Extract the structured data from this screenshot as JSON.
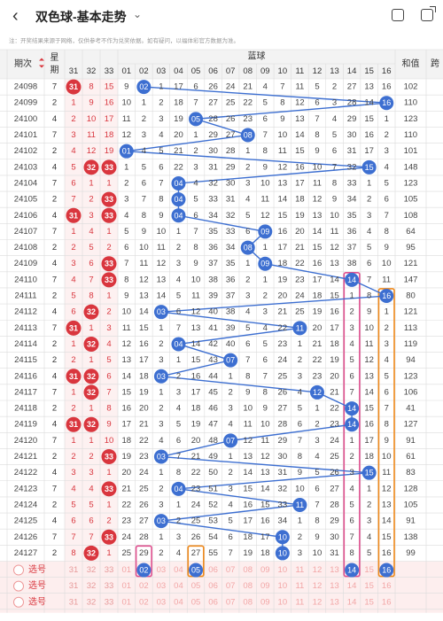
{
  "header": {
    "back_icon": "chevron-left-icon",
    "title": "双色球-基本走势",
    "dropdown_icon": "chevron-down-icon",
    "icons": [
      "phone-icon",
      "share-icon"
    ]
  },
  "notice": "注：开奖结果来源于网络，仅供参考不作为兑奖依据。如有疑问，以福体彩官方数据为准。",
  "columns": {
    "period": "期次",
    "week": "星期",
    "red_tail": [
      "31",
      "32",
      "33"
    ],
    "blue_group": "蓝球",
    "blue": [
      "01",
      "02",
      "03",
      "04",
      "05",
      "06",
      "07",
      "08",
      "09",
      "10",
      "11",
      "12",
      "13",
      "14",
      "15",
      "16"
    ],
    "sum": "和值",
    "extra": "跨"
  },
  "rows": [
    {
      "p": "24098",
      "w": "7",
      "r": [
        {
          "v": "31",
          "h": 1
        },
        {
          "v": "8"
        },
        {
          "v": "15"
        }
      ],
      "b": 2,
      "sum": "102"
    },
    {
      "p": "24099",
      "w": "2",
      "r": [
        {
          "v": "1"
        },
        {
          "v": "9"
        },
        {
          "v": "16"
        }
      ],
      "b": 16,
      "sum": "110"
    },
    {
      "p": "24100",
      "w": "4",
      "r": [
        {
          "v": "2"
        },
        {
          "v": "10"
        },
        {
          "v": "17"
        }
      ],
      "b": 5,
      "sum": "123"
    },
    {
      "p": "24101",
      "w": "7",
      "r": [
        {
          "v": "3"
        },
        {
          "v": "11"
        },
        {
          "v": "18"
        }
      ],
      "b": 8,
      "sum": "110"
    },
    {
      "p": "24102",
      "w": "2",
      "r": [
        {
          "v": "4"
        },
        {
          "v": "12"
        },
        {
          "v": "19"
        }
      ],
      "b": 1,
      "sum": "101"
    },
    {
      "p": "24103",
      "w": "4",
      "r": [
        {
          "v": "5"
        },
        {
          "v": "32",
          "h": 1
        },
        {
          "v": "33",
          "h": 1
        }
      ],
      "b": 15,
      "sum": "148"
    },
    {
      "p": "24104",
      "w": "7",
      "r": [
        {
          "v": "6"
        },
        {
          "v": "1"
        },
        {
          "v": "1"
        }
      ],
      "b": 4,
      "sum": "123"
    },
    {
      "p": "24105",
      "w": "2",
      "r": [
        {
          "v": "7"
        },
        {
          "v": "2"
        },
        {
          "v": "33",
          "h": 1
        }
      ],
      "b": 4,
      "sum": "105"
    },
    {
      "p": "24106",
      "w": "4",
      "r": [
        {
          "v": "31",
          "h": 1
        },
        {
          "v": "3"
        },
        {
          "v": "33",
          "h": 1
        }
      ],
      "b": 4,
      "sum": "108"
    },
    {
      "p": "24107",
      "w": "7",
      "r": [
        {
          "v": "1"
        },
        {
          "v": "4"
        },
        {
          "v": "1"
        }
      ],
      "b": 9,
      "sum": "64"
    },
    {
      "p": "24108",
      "w": "2",
      "r": [
        {
          "v": "2"
        },
        {
          "v": "5"
        },
        {
          "v": "2"
        }
      ],
      "b": 8,
      "sum": "95"
    },
    {
      "p": "24109",
      "w": "4",
      "r": [
        {
          "v": "3"
        },
        {
          "v": "6"
        },
        {
          "v": "33",
          "h": 1
        }
      ],
      "b": 9,
      "sum": "121"
    },
    {
      "p": "24110",
      "w": "7",
      "r": [
        {
          "v": "4"
        },
        {
          "v": "7"
        },
        {
          "v": "33",
          "h": 1
        }
      ],
      "b": 14,
      "sum": "147"
    },
    {
      "p": "24111",
      "w": "2",
      "r": [
        {
          "v": "5"
        },
        {
          "v": "8"
        },
        {
          "v": "1"
        }
      ],
      "b": 16,
      "sum": "80"
    },
    {
      "p": "24112",
      "w": "4",
      "r": [
        {
          "v": "6"
        },
        {
          "v": "32",
          "h": 1
        },
        {
          "v": "2"
        }
      ],
      "b": 3,
      "sum": "121"
    },
    {
      "p": "24113",
      "w": "7",
      "r": [
        {
          "v": "31",
          "h": 1
        },
        {
          "v": "1"
        },
        {
          "v": "3"
        }
      ],
      "b": 11,
      "sum": "113"
    },
    {
      "p": "24114",
      "w": "2",
      "r": [
        {
          "v": "1"
        },
        {
          "v": "32",
          "h": 1
        },
        {
          "v": "4"
        }
      ],
      "b": 4,
      "sum": "119"
    },
    {
      "p": "24115",
      "w": "2",
      "r": [
        {
          "v": "2"
        },
        {
          "v": "1"
        },
        {
          "v": "5"
        }
      ],
      "b": 7,
      "sum": "94"
    },
    {
      "p": "24116",
      "w": "4",
      "r": [
        {
          "v": "31",
          "h": 1
        },
        {
          "v": "32",
          "h": 1
        },
        {
          "v": "6"
        }
      ],
      "b": 3,
      "sum": "123"
    },
    {
      "p": "24117",
      "w": "7",
      "r": [
        {
          "v": "1"
        },
        {
          "v": "32",
          "h": 1
        },
        {
          "v": "7"
        }
      ],
      "b": 12,
      "sum": "106"
    },
    {
      "p": "24118",
      "w": "2",
      "r": [
        {
          "v": "2"
        },
        {
          "v": "1"
        },
        {
          "v": "8"
        }
      ],
      "b": 14,
      "sum": "41"
    },
    {
      "p": "24119",
      "w": "4",
      "r": [
        {
          "v": "31",
          "h": 1
        },
        {
          "v": "32",
          "h": 1
        },
        {
          "v": "9"
        }
      ],
      "b": 14,
      "sum": "127"
    },
    {
      "p": "24120",
      "w": "7",
      "r": [
        {
          "v": "1"
        },
        {
          "v": "1"
        },
        {
          "v": "10"
        }
      ],
      "b": 7,
      "sum": "91"
    },
    {
      "p": "24121",
      "w": "2",
      "r": [
        {
          "v": "2"
        },
        {
          "v": "2"
        },
        {
          "v": "33",
          "h": 1
        }
      ],
      "b": 3,
      "sum": "61"
    },
    {
      "p": "24122",
      "w": "4",
      "r": [
        {
          "v": "3"
        },
        {
          "v": "3"
        },
        {
          "v": "1"
        }
      ],
      "b": 15,
      "sum": "83"
    },
    {
      "p": "24123",
      "w": "7",
      "r": [
        {
          "v": "4"
        },
        {
          "v": "4"
        },
        {
          "v": "33",
          "h": 1
        }
      ],
      "b": 4,
      "sum": "128"
    },
    {
      "p": "24124",
      "w": "2",
      "r": [
        {
          "v": "5"
        },
        {
          "v": "5"
        },
        {
          "v": "1"
        }
      ],
      "b": 11,
      "sum": "105"
    },
    {
      "p": "24125",
      "w": "4",
      "r": [
        {
          "v": "6"
        },
        {
          "v": "6"
        },
        {
          "v": "2"
        }
      ],
      "b": 3,
      "sum": "91"
    },
    {
      "p": "24126",
      "w": "7",
      "r": [
        {
          "v": "7"
        },
        {
          "v": "7"
        },
        {
          "v": "33",
          "h": 1
        }
      ],
      "b": 10,
      "sum": "138"
    },
    {
      "p": "24127",
      "w": "2",
      "r": [
        {
          "v": "8"
        },
        {
          "v": "32",
          "h": 1
        },
        {
          "v": "1"
        }
      ],
      "b": 10,
      "sum": "99"
    }
  ],
  "blue_grid": [
    [
      "9",
      null,
      "1",
      "17",
      "6",
      "26",
      "24",
      "21",
      "4",
      "7",
      "11",
      "5",
      "2",
      "27",
      "13",
      "16"
    ],
    [
      "10",
      "1",
      "2",
      "18",
      "7",
      "27",
      "25",
      "22",
      "5",
      "8",
      "12",
      "6",
      "3",
      "28",
      "14",
      null
    ],
    [
      "11",
      "2",
      "3",
      "19",
      null,
      "28",
      "26",
      "23",
      "6",
      "9",
      "13",
      "7",
      "4",
      "29",
      "15",
      "1"
    ],
    [
      "12",
      "3",
      "4",
      "20",
      "1",
      "29",
      "27",
      null,
      "7",
      "10",
      "14",
      "8",
      "5",
      "30",
      "16",
      "2"
    ],
    [
      null,
      "4",
      "5",
      "21",
      "2",
      "30",
      "28",
      "1",
      "8",
      "11",
      "15",
      "9",
      "6",
      "31",
      "17",
      "3"
    ],
    [
      "1",
      "5",
      "6",
      "22",
      "3",
      "31",
      "29",
      "2",
      "9",
      "12",
      "16",
      "10",
      "7",
      "32",
      null,
      "4"
    ],
    [
      "2",
      "6",
      "7",
      null,
      "4",
      "32",
      "30",
      "3",
      "10",
      "13",
      "17",
      "11",
      "8",
      "33",
      "1",
      "5"
    ],
    [
      "3",
      "7",
      "8",
      null,
      "5",
      "33",
      "31",
      "4",
      "11",
      "14",
      "18",
      "12",
      "9",
      "34",
      "2",
      "6"
    ],
    [
      "4",
      "8",
      "9",
      null,
      "6",
      "34",
      "32",
      "5",
      "12",
      "15",
      "19",
      "13",
      "10",
      "35",
      "3",
      "7"
    ],
    [
      "5",
      "9",
      "10",
      "1",
      "7",
      "35",
      "33",
      "6",
      null,
      "16",
      "20",
      "14",
      "11",
      "36",
      "4",
      "8"
    ],
    [
      "6",
      "10",
      "11",
      "2",
      "8",
      "36",
      "34",
      null,
      "1",
      "17",
      "21",
      "15",
      "12",
      "37",
      "5",
      "9"
    ],
    [
      "7",
      "11",
      "12",
      "3",
      "9",
      "37",
      "35",
      "1",
      null,
      "18",
      "22",
      "16",
      "13",
      "38",
      "6",
      "10"
    ],
    [
      "8",
      "12",
      "13",
      "4",
      "10",
      "38",
      "36",
      "2",
      "1",
      "19",
      "23",
      "17",
      "14",
      null,
      "7",
      "11"
    ],
    [
      "9",
      "13",
      "14",
      "5",
      "11",
      "39",
      "37",
      "3",
      "2",
      "20",
      "24",
      "18",
      "15",
      "1",
      "8",
      null
    ],
    [
      "10",
      "14",
      null,
      "6",
      "12",
      "40",
      "38",
      "4",
      "3",
      "21",
      "25",
      "19",
      "16",
      "2",
      "9",
      "1"
    ],
    [
      "11",
      "15",
      "1",
      "7",
      "13",
      "41",
      "39",
      "5",
      "4",
      "22",
      null,
      "20",
      "17",
      "3",
      "10",
      "2"
    ],
    [
      "12",
      "16",
      "2",
      null,
      "14",
      "42",
      "40",
      "6",
      "5",
      "23",
      "1",
      "21",
      "18",
      "4",
      "11",
      "3"
    ],
    [
      "13",
      "17",
      "3",
      "1",
      "15",
      "43",
      null,
      "7",
      "6",
      "24",
      "2",
      "22",
      "19",
      "5",
      "12",
      "4"
    ],
    [
      "14",
      "18",
      null,
      "2",
      "16",
      "44",
      "1",
      "8",
      "7",
      "25",
      "3",
      "23",
      "20",
      "6",
      "13",
      "5"
    ],
    [
      "15",
      "19",
      "1",
      "3",
      "17",
      "45",
      "2",
      "9",
      "8",
      "26",
      "4",
      null,
      "21",
      "7",
      "14",
      "6"
    ],
    [
      "16",
      "20",
      "2",
      "4",
      "18",
      "46",
      "3",
      "10",
      "9",
      "27",
      "5",
      "1",
      "22",
      null,
      "15",
      "7"
    ],
    [
      "17",
      "21",
      "3",
      "5",
      "19",
      "47",
      "4",
      "11",
      "10",
      "28",
      "6",
      "2",
      "23",
      null,
      "16",
      "8"
    ],
    [
      "18",
      "22",
      "4",
      "6",
      "20",
      "48",
      null,
      "12",
      "11",
      "29",
      "7",
      "3",
      "24",
      "1",
      "17",
      "9"
    ],
    [
      "19",
      "23",
      null,
      "7",
      "21",
      "49",
      "1",
      "13",
      "12",
      "30",
      "8",
      "4",
      "25",
      "2",
      "18",
      "10"
    ],
    [
      "20",
      "24",
      "1",
      "8",
      "22",
      "50",
      "2",
      "14",
      "13",
      "31",
      "9",
      "5",
      "26",
      "3",
      null,
      "11"
    ],
    [
      "21",
      "25",
      "2",
      null,
      "23",
      "51",
      "3",
      "15",
      "14",
      "32",
      "10",
      "6",
      "27",
      "4",
      "1",
      "12"
    ],
    [
      "22",
      "26",
      "3",
      "1",
      "24",
      "52",
      "4",
      "16",
      "15",
      "33",
      null,
      "7",
      "28",
      "5",
      "2",
      "13"
    ],
    [
      "23",
      "27",
      null,
      "2",
      "25",
      "53",
      "5",
      "17",
      "16",
      "34",
      "1",
      "8",
      "29",
      "6",
      "3",
      "14"
    ],
    [
      "24",
      "28",
      "1",
      "3",
      "26",
      "54",
      "6",
      "18",
      "17",
      null,
      "2",
      "9",
      "30",
      "7",
      "4",
      "15"
    ],
    [
      "25",
      "29",
      "2",
      "4",
      "27",
      "55",
      "7",
      "19",
      "18",
      null,
      "3",
      "10",
      "31",
      "8",
      "5",
      "16"
    ]
  ],
  "prediction": {
    "balls": [
      2,
      5,
      14,
      16
    ],
    "boxes": [
      2,
      5,
      14,
      16
    ]
  },
  "select_rows": [
    {
      "label": "选号",
      "red": [
        "31",
        "32",
        "33"
      ]
    },
    {
      "label": "选号",
      "red": [
        "31",
        "32",
        "33"
      ]
    },
    {
      "label": "选号",
      "red": [
        "31",
        "32",
        "33"
      ]
    }
  ],
  "colors": {
    "red": "#d9363e",
    "blue": "#3d6fd1",
    "pink": "#e0508f",
    "orange": "#f08a1c",
    "grid": "#dcdcdc",
    "header_bg": "#f3f3f3",
    "tail_bg": "#fdf1f1"
  }
}
